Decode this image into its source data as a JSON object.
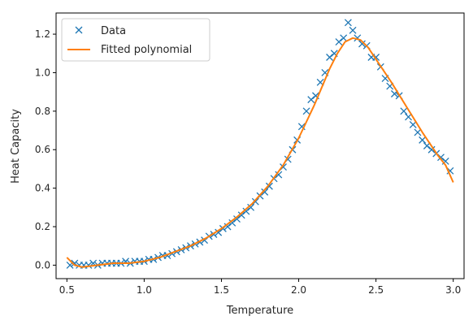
{
  "chart_data": {
    "type": "scatter",
    "xlabel": "Temperature",
    "ylabel": "Heat Capacity",
    "xlim": [
      0.43,
      3.07
    ],
    "ylim": [
      -0.07,
      1.31
    ],
    "xticks": [
      0.5,
      1.0,
      1.5,
      2.0,
      2.5,
      3.0
    ],
    "xtick_labels": [
      "0.5",
      "1.0",
      "1.5",
      "2.0",
      "2.5",
      "3.0"
    ],
    "yticks": [
      0.0,
      0.2,
      0.4,
      0.6,
      0.8,
      1.0,
      1.2
    ],
    "ytick_labels": [
      "0.0",
      "0.2",
      "0.4",
      "0.6",
      "0.8",
      "1.0",
      "1.2"
    ],
    "grid": false,
    "legend_position": "top-left",
    "series": [
      {
        "name": "Data",
        "kind": "scatter",
        "marker": "x",
        "color": "#1f77b4",
        "x": [
          0.52,
          0.55,
          0.58,
          0.61,
          0.64,
          0.67,
          0.7,
          0.73,
          0.76,
          0.79,
          0.82,
          0.85,
          0.88,
          0.91,
          0.94,
          0.97,
          1.0,
          1.03,
          1.06,
          1.09,
          1.12,
          1.15,
          1.18,
          1.21,
          1.24,
          1.27,
          1.3,
          1.33,
          1.36,
          1.39,
          1.42,
          1.45,
          1.48,
          1.51,
          1.54,
          1.57,
          1.6,
          1.63,
          1.66,
          1.69,
          1.72,
          1.75,
          1.78,
          1.81,
          1.84,
          1.87,
          1.9,
          1.93,
          1.96,
          1.99,
          2.02,
          2.05,
          2.08,
          2.11,
          2.14,
          2.17,
          2.2,
          2.23,
          2.26,
          2.29,
          2.32,
          2.35,
          2.38,
          2.41,
          2.44,
          2.47,
          2.5,
          2.53,
          2.56,
          2.59,
          2.62,
          2.65,
          2.68,
          2.71,
          2.74,
          2.77,
          2.8,
          2.83,
          2.86,
          2.89,
          2.92,
          2.95,
          2.98
        ],
        "y": [
          0.0,
          0.01,
          0.0,
          0.0,
          0.0,
          0.01,
          0.0,
          0.01,
          0.01,
          0.01,
          0.01,
          0.01,
          0.02,
          0.01,
          0.02,
          0.02,
          0.02,
          0.03,
          0.03,
          0.04,
          0.05,
          0.05,
          0.06,
          0.07,
          0.08,
          0.09,
          0.1,
          0.11,
          0.12,
          0.13,
          0.15,
          0.16,
          0.17,
          0.19,
          0.2,
          0.22,
          0.24,
          0.26,
          0.28,
          0.3,
          0.33,
          0.36,
          0.38,
          0.41,
          0.45,
          0.47,
          0.51,
          0.55,
          0.6,
          0.65,
          0.72,
          0.8,
          0.86,
          0.88,
          0.95,
          1.0,
          1.08,
          1.1,
          1.16,
          1.18,
          1.26,
          1.22,
          1.18,
          1.15,
          1.14,
          1.08,
          1.08,
          1.03,
          0.97,
          0.93,
          0.89,
          0.88,
          0.8,
          0.77,
          0.73,
          0.69,
          0.65,
          0.62,
          0.6,
          0.58,
          0.56,
          0.54,
          0.49
        ]
      },
      {
        "name": "Fitted polynomial",
        "kind": "line",
        "color": "#ff7f0e",
        "x": [
          0.5,
          0.55,
          0.6,
          0.7,
          0.8,
          0.9,
          1.0,
          1.1,
          1.2,
          1.3,
          1.4,
          1.5,
          1.6,
          1.7,
          1.8,
          1.9,
          2.0,
          2.1,
          2.2,
          2.25,
          2.3,
          2.35,
          2.4,
          2.45,
          2.5,
          2.6,
          2.7,
          2.8,
          2.9,
          2.95,
          3.0
        ],
        "y": [
          0.04,
          0.0,
          -0.01,
          0.0,
          0.01,
          0.01,
          0.02,
          0.04,
          0.07,
          0.1,
          0.14,
          0.19,
          0.25,
          0.32,
          0.41,
          0.52,
          0.66,
          0.83,
          1.02,
          1.1,
          1.16,
          1.18,
          1.17,
          1.13,
          1.07,
          0.95,
          0.82,
          0.69,
          0.57,
          0.52,
          0.43
        ]
      }
    ]
  }
}
